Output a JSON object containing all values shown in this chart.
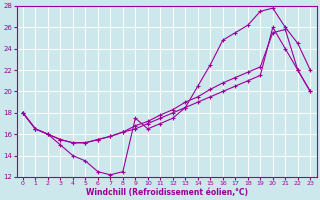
{
  "xlabel": "Windchill (Refroidissement éolien,°C)",
  "bg_color": "#cde8ec",
  "grid_color": "#ffffff",
  "line_color": "#990099",
  "xlim": [
    -0.5,
    23.5
  ],
  "ylim": [
    12,
    28
  ],
  "xticks": [
    0,
    1,
    2,
    3,
    4,
    5,
    6,
    7,
    8,
    9,
    10,
    11,
    12,
    13,
    14,
    15,
    16,
    17,
    18,
    19,
    20,
    21,
    22,
    23
  ],
  "yticks": [
    12,
    14,
    16,
    18,
    20,
    22,
    24,
    26,
    28
  ],
  "curve1_x": [
    0,
    1,
    2,
    3,
    4,
    5,
    6,
    7,
    8,
    9,
    10,
    11,
    12,
    13,
    14,
    15,
    16,
    17,
    18,
    19,
    20,
    21,
    22,
    23
  ],
  "curve1_y": [
    18,
    16.5,
    16,
    15,
    14,
    13.5,
    12.5,
    12.2,
    12.5,
    17.5,
    16.5,
    17,
    17.5,
    18.5,
    20.5,
    22.5,
    24.8,
    25.5,
    26.2,
    27.5,
    27.8,
    26.0,
    24.5,
    22.0
  ],
  "curve2_x": [
    0,
    1,
    2,
    3,
    4,
    5,
    6,
    7,
    8,
    9,
    10,
    11,
    12,
    13,
    14,
    15,
    16,
    17,
    18,
    19,
    20,
    21,
    22,
    23
  ],
  "curve2_y": [
    18,
    16.5,
    16,
    15.5,
    15.2,
    15.2,
    15.5,
    15.8,
    16.2,
    16.5,
    17.0,
    17.5,
    18.0,
    18.5,
    19.0,
    19.5,
    20.0,
    20.5,
    21.0,
    21.5,
    26.0,
    24.0,
    22.0,
    20.0
  ],
  "curve3_x": [
    0,
    1,
    2,
    3,
    4,
    5,
    6,
    7,
    8,
    9,
    10,
    11,
    12,
    13,
    14,
    15,
    16,
    17,
    18,
    19,
    20,
    21,
    22,
    23
  ],
  "curve3_y": [
    18,
    16.5,
    16,
    15.5,
    15.2,
    15.2,
    15.5,
    15.8,
    16.2,
    16.8,
    17.2,
    17.8,
    18.3,
    19.0,
    19.5,
    20.2,
    20.8,
    21.3,
    21.8,
    22.3,
    25.5,
    25.8,
    22.0,
    20.0
  ]
}
